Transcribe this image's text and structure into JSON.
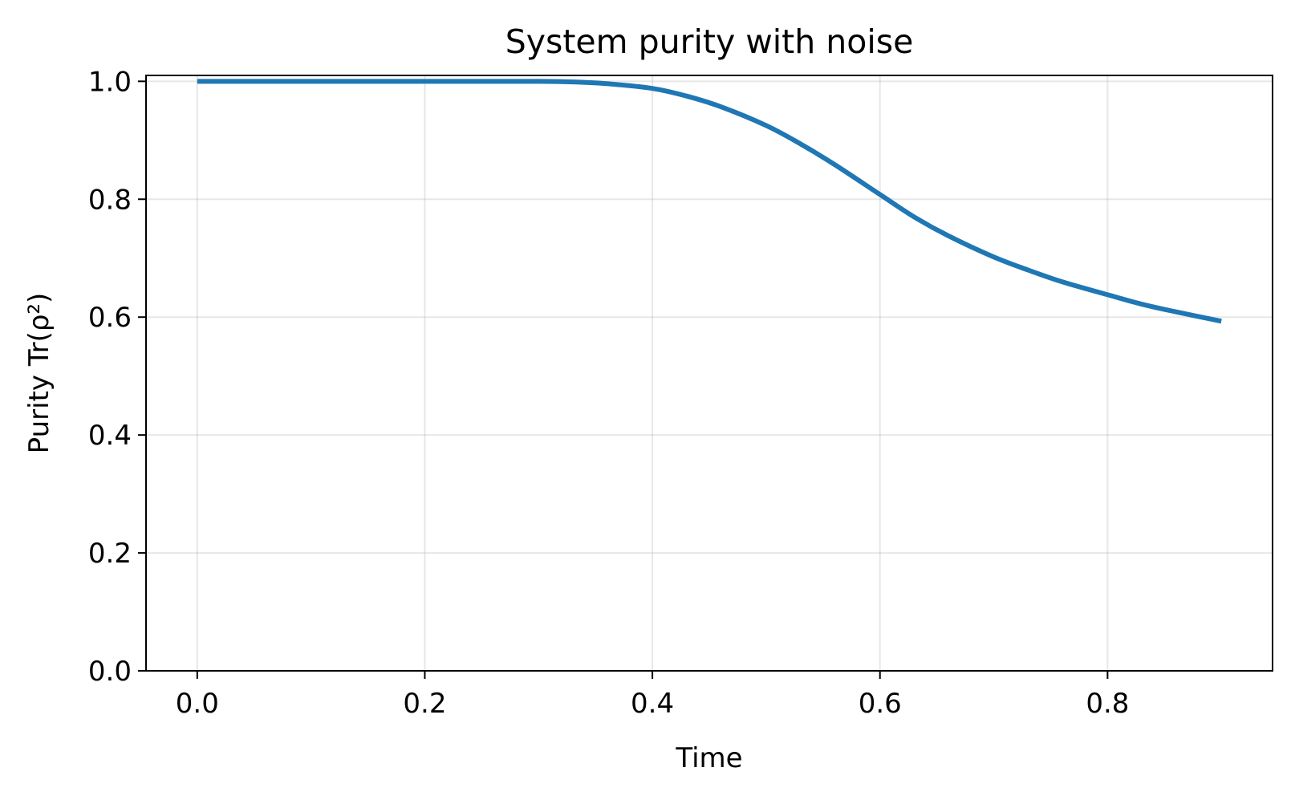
{
  "chart_data": {
    "type": "line",
    "title": "System purity with noise",
    "xlabel": "Time",
    "ylabel": "Purity Tr(ρ²)",
    "xlim": [
      -0.045,
      0.945
    ],
    "ylim": [
      0.0,
      1.01
    ],
    "xticks": [
      0.0,
      0.2,
      0.4,
      0.6,
      0.8
    ],
    "xtick_labels": [
      "0.0",
      "0.2",
      "0.4",
      "0.6",
      "0.8"
    ],
    "yticks": [
      0.0,
      0.2,
      0.4,
      0.6,
      0.8,
      1.0
    ],
    "ytick_labels": [
      "0.0",
      "0.2",
      "0.4",
      "0.6",
      "0.8",
      "1.0"
    ],
    "grid": true,
    "line_color": "#1f77b4",
    "series": [
      {
        "x": [
          0.0,
          0.05,
          0.1,
          0.15,
          0.2,
          0.25,
          0.3,
          0.33,
          0.36,
          0.4,
          0.43,
          0.46,
          0.5,
          0.53,
          0.56,
          0.6,
          0.63,
          0.66,
          0.7,
          0.73,
          0.76,
          0.8,
          0.83,
          0.86,
          0.9
        ],
        "values": [
          1.0,
          1.0,
          1.0,
          1.0,
          1.0,
          1.0,
          1.0,
          0.999,
          0.996,
          0.988,
          0.975,
          0.957,
          0.925,
          0.894,
          0.859,
          0.808,
          0.77,
          0.738,
          0.702,
          0.68,
          0.66,
          0.638,
          0.622,
          0.609,
          0.593
        ]
      }
    ]
  }
}
